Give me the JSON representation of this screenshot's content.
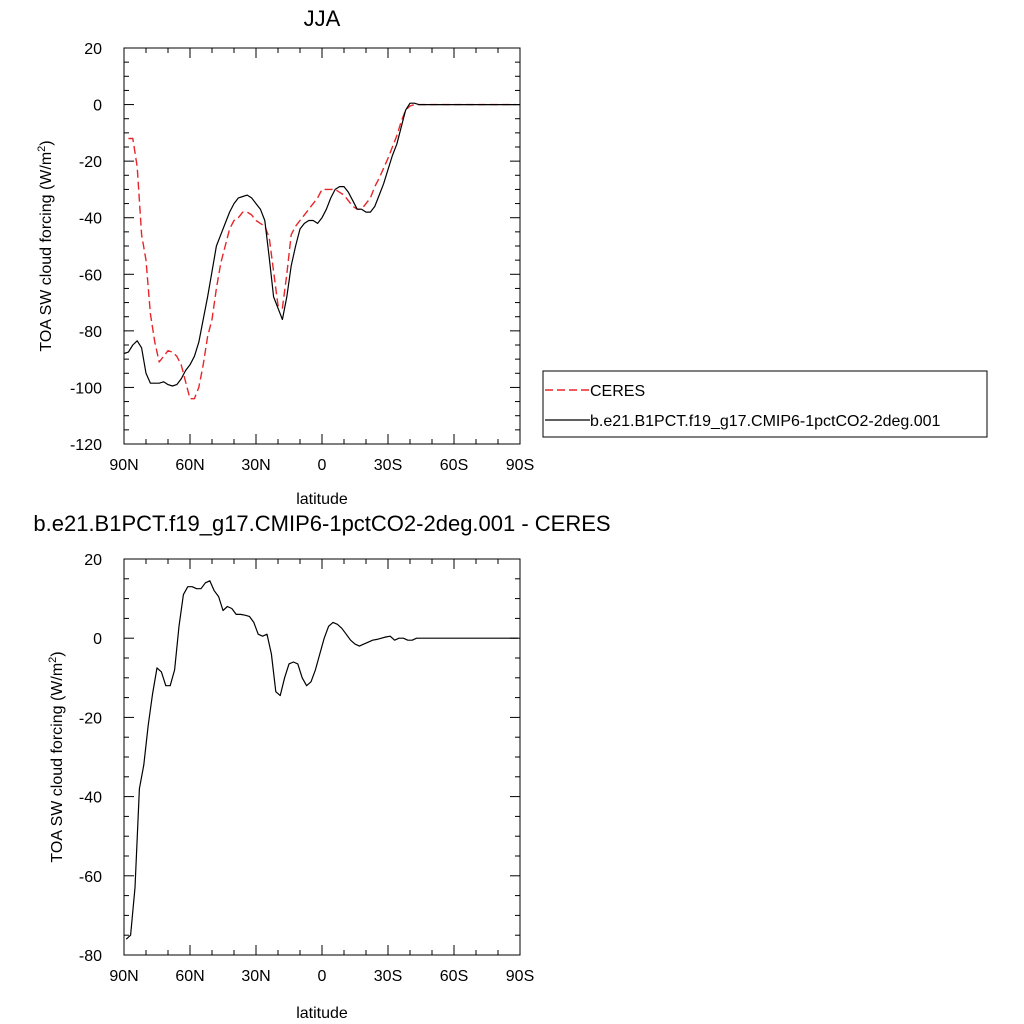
{
  "chart_data": [
    {
      "type": "line",
      "title": "JJA",
      "xlabel": "latitude",
      "ylabel": "TOA SW cloud forcing (W/m",
      "ylabel_sup": "2",
      "ylabel_end": ")",
      "xlim": [
        90,
        -90
      ],
      "ylim": [
        -120,
        20
      ],
      "x_ticks": [
        {
          "value": 90,
          "label": "90N"
        },
        {
          "value": 60,
          "label": "60N"
        },
        {
          "value": 30,
          "label": "30N"
        },
        {
          "value": 0,
          "label": "0"
        },
        {
          "value": -30,
          "label": "30S"
        },
        {
          "value": -60,
          "label": "60S"
        },
        {
          "value": -90,
          "label": "90S"
        }
      ],
      "y_ticks": [
        20,
        0,
        -20,
        -40,
        -60,
        -80,
        -100,
        -120
      ],
      "legend_position": "right",
      "series": [
        {
          "name": "CERES",
          "color": "#e8262a",
          "dash": "dashed",
          "x": [
            88,
            86,
            84,
            82,
            80,
            78,
            76,
            74,
            72,
            70,
            68,
            66,
            64,
            62,
            60,
            58,
            56,
            54,
            52,
            50,
            48,
            46,
            44,
            42,
            40,
            38,
            36,
            34,
            32,
            30,
            28,
            26,
            24,
            22,
            20,
            18,
            16,
            14,
            12,
            10,
            8,
            6,
            4,
            2,
            0,
            -2,
            -4,
            -6,
            -8,
            -10,
            -12,
            -14,
            -16,
            -18,
            -20,
            -22,
            -24,
            -26,
            -28,
            -30,
            -32,
            -34,
            -36,
            -38,
            -40,
            -42,
            -44,
            -46,
            -48,
            -50,
            -52,
            -54,
            -56,
            -58,
            -60,
            -62,
            -64,
            -66,
            -68,
            -70,
            -72,
            -74,
            -76,
            -78,
            -80,
            -82,
            -84,
            -86,
            -88
          ],
          "y": [
            -12,
            -12,
            -22,
            -46,
            -55,
            -74,
            -84,
            -91,
            -89,
            -87,
            -87.5,
            -89,
            -92,
            -98,
            -104,
            -104,
            -100,
            -92,
            -82,
            -76,
            -65,
            -56,
            -50,
            -44,
            -41,
            -40,
            -38,
            -38,
            -39,
            -41,
            -42,
            -43,
            -47,
            -59,
            -71,
            -72,
            -60,
            -46,
            -43,
            -41,
            -39,
            -37,
            -35,
            -33,
            -30,
            -30,
            -30,
            -30,
            -31,
            -32,
            -34,
            -36,
            -37,
            -37,
            -35,
            -33,
            -29,
            -26,
            -22.5,
            -19,
            -15,
            -11,
            -6,
            -2,
            -0.5,
            0,
            0,
            0,
            0,
            0,
            0,
            0,
            0,
            0,
            0,
            0,
            0,
            0,
            0,
            0,
            0,
            0,
            0,
            0,
            0,
            0,
            0,
            0,
            0
          ]
        },
        {
          "name": "b.e21.B1PCT.f19_g17.CMIP6-1pctCO2-2deg.001",
          "color": "#000000",
          "dash": "solid",
          "x": [
            90,
            88,
            86,
            84,
            82,
            80,
            78,
            76,
            74,
            72,
            70,
            68,
            66,
            64,
            62,
            60,
            58,
            56,
            54,
            52,
            50,
            48,
            46,
            44,
            42,
            40,
            38,
            36,
            34,
            32,
            30,
            28,
            26,
            24,
            22,
            20,
            18,
            16,
            14,
            12,
            10,
            8,
            6,
            4,
            2,
            0,
            -2,
            -4,
            -6,
            -8,
            -10,
            -12,
            -14,
            -16,
            -18,
            -20,
            -22,
            -24,
            -26,
            -28,
            -30,
            -32,
            -34,
            -36,
            -38,
            -40,
            -42,
            -44,
            -46,
            -48,
            -50,
            -52,
            -54,
            -56,
            -58,
            -60,
            -62,
            -64,
            -66,
            -68,
            -70,
            -72,
            -74,
            -76,
            -78,
            -80,
            -82,
            -84,
            -86,
            -88,
            -90
          ],
          "y": [
            -88,
            -87.5,
            -85,
            -83.5,
            -86,
            -95,
            -98.5,
            -98.5,
            -98.5,
            -98,
            -99,
            -99.5,
            -99,
            -97,
            -94,
            -92,
            -89,
            -84,
            -76,
            -68,
            -59,
            -50,
            -46,
            -42,
            -38,
            -35,
            -33,
            -32.5,
            -32,
            -33,
            -35,
            -37,
            -41,
            -54,
            -68,
            -72,
            -76,
            -68,
            -57,
            -50,
            -44,
            -42,
            -41,
            -41,
            -42,
            -40,
            -37,
            -33,
            -30,
            -29,
            -29,
            -31,
            -34,
            -37,
            -37,
            -38,
            -38,
            -36,
            -32,
            -28,
            -23,
            -18,
            -14,
            -8,
            -2,
            0.5,
            0.5,
            0,
            0,
            0,
            0,
            0,
            0,
            0,
            0,
            0,
            0,
            0,
            0,
            0,
            0,
            0,
            0,
            0,
            0,
            0,
            0,
            0,
            0,
            0,
            0
          ]
        }
      ]
    },
    {
      "type": "line",
      "title": "b.e21.B1PCT.f19_g17.CMIP6-1pctCO2-2deg.001 - CERES",
      "xlabel": "latitude",
      "ylabel": "TOA SW cloud forcing (W/m",
      "ylabel_sup": "2",
      "ylabel_end": ")",
      "xlim": [
        90,
        -90
      ],
      "ylim": [
        -80,
        20
      ],
      "x_ticks": [
        {
          "value": 90,
          "label": "90N"
        },
        {
          "value": 60,
          "label": "60N"
        },
        {
          "value": 30,
          "label": "30N"
        },
        {
          "value": 0,
          "label": "0"
        },
        {
          "value": -30,
          "label": "30S"
        },
        {
          "value": -60,
          "label": "60S"
        },
        {
          "value": -90,
          "label": "90S"
        }
      ],
      "y_ticks": [
        20,
        0,
        -20,
        -40,
        -60,
        -80
      ],
      "series": [
        {
          "color": "#000000",
          "dash": "solid",
          "x": [
            89,
            87,
            85,
            83,
            81,
            79,
            77,
            75,
            73,
            71,
            69,
            67,
            65,
            63,
            61,
            59,
            57,
            55,
            53,
            51,
            49,
            47,
            45,
            43,
            41,
            39,
            37,
            35,
            33,
            31,
            29,
            27,
            25,
            23,
            21,
            19,
            17,
            15,
            13,
            11,
            9,
            7,
            5,
            3,
            1,
            -1,
            -3,
            -5,
            -7,
            -9,
            -11,
            -13,
            -15,
            -17,
            -19,
            -21,
            -23,
            -25,
            -27,
            -29,
            -31,
            -33,
            -35,
            -37,
            -39,
            -41,
            -43,
            -45,
            -47,
            -49,
            -51,
            -53,
            -55,
            -57,
            -59,
            -61,
            -63,
            -65,
            -67,
            -69,
            -71,
            -73,
            -75,
            -77,
            -79,
            -81,
            -83,
            -85,
            -87,
            -89
          ],
          "y": [
            -76,
            -75,
            -63,
            -38,
            -32,
            -22,
            -14,
            -7.5,
            -8.5,
            -12,
            -12,
            -8,
            3,
            11,
            13,
            13,
            12.5,
            12.5,
            14,
            14.5,
            12,
            10.5,
            7,
            8,
            7.5,
            6,
            6,
            5.8,
            5.5,
            4,
            1,
            0.5,
            1,
            -4,
            -13.5,
            -14.5,
            -10,
            -6.5,
            -6,
            -6.5,
            -10,
            -12,
            -11,
            -8,
            -4,
            0,
            3,
            4,
            3.5,
            2.5,
            1,
            -0.5,
            -1.5,
            -2,
            -1.5,
            -1,
            -0.5,
            -0.3,
            0,
            0.3,
            0.5,
            -0.5,
            0,
            0,
            -0.5,
            -0.5,
            0,
            0,
            0,
            0,
            0,
            0,
            0,
            0,
            0,
            0,
            0,
            0,
            0,
            0,
            0,
            0,
            0,
            0,
            0,
            0,
            0,
            0,
            0,
            0
          ]
        }
      ]
    }
  ]
}
